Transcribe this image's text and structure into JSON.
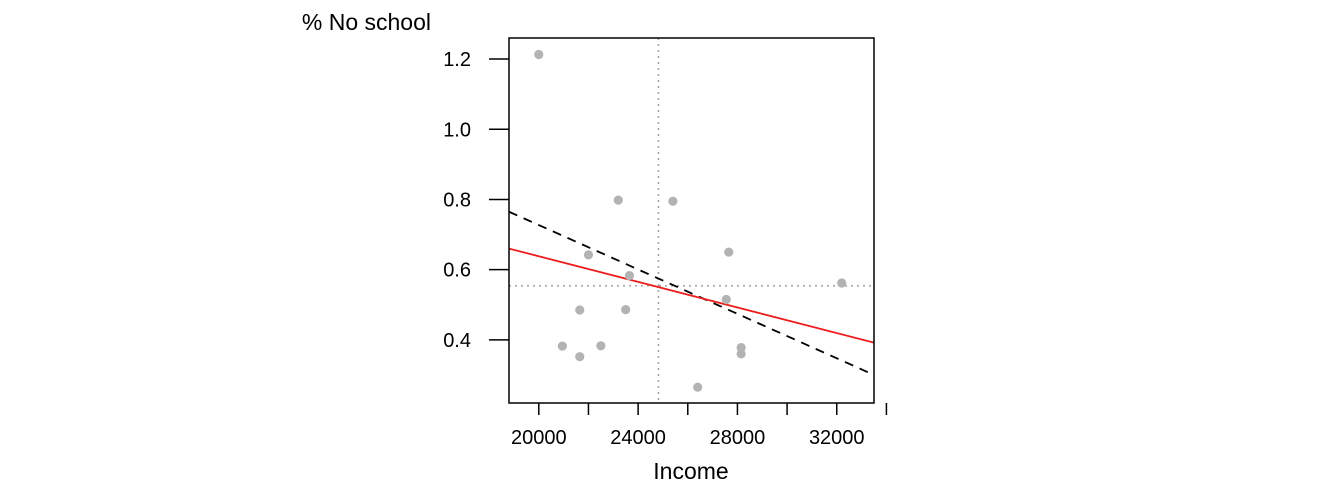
{
  "chart_data": {
    "type": "scatter",
    "title": "",
    "xlabel": "Income",
    "ylabel": "% No school",
    "xlim": [
      18800,
      33500
    ],
    "ylim": [
      0.22,
      1.26
    ],
    "x_ticks": [
      20000,
      22000,
      24000,
      26000,
      28000,
      30000,
      32000,
      34000
    ],
    "x_tick_labels": [
      "20000",
      "",
      "24000",
      "",
      "28000",
      "",
      "32000",
      ""
    ],
    "y_ticks": [
      0.4,
      0.6,
      0.8,
      1.0,
      1.2
    ],
    "y_tick_labels": [
      "0.4",
      "0.6",
      "0.8",
      "1.0",
      "1.2"
    ],
    "grid": false,
    "points": {
      "color": "#b3b3b3",
      "x": [
        20000,
        20950,
        21650,
        21650,
        22000,
        22500,
        23200,
        23500,
        23650,
        25400,
        26400,
        27550,
        27650,
        28150,
        28150,
        32200
      ],
      "y": [
        1.213,
        0.382,
        0.352,
        0.485,
        0.642,
        0.383,
        0.798,
        0.486,
        0.583,
        0.795,
        0.265,
        0.515,
        0.65,
        0.36,
        0.378,
        0.562
      ]
    },
    "reference_lines": {
      "color": "#a6a6a6",
      "style": "dotted",
      "x_mean": 24820,
      "y_mean": 0.554
    },
    "fit_lines": [
      {
        "style": "dashed",
        "color": "#000000",
        "points": [
          [
            18800,
            0.765
          ],
          [
            33500,
            0.3
          ]
        ]
      },
      {
        "style": "solid",
        "color": "#ee1c1c",
        "points": [
          [
            18800,
            0.66
          ],
          [
            33500,
            0.392
          ]
        ]
      }
    ]
  }
}
